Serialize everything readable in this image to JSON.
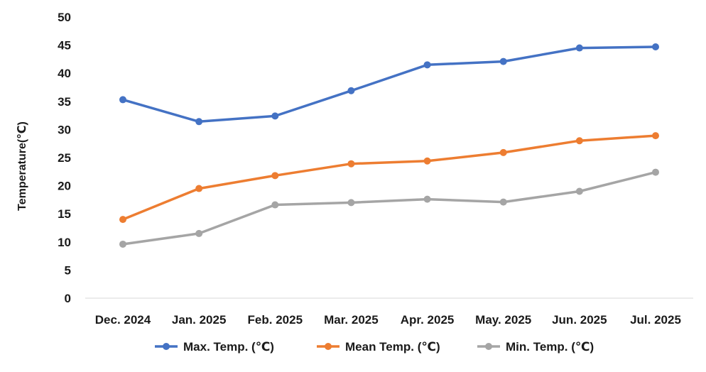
{
  "chart_data": {
    "type": "line",
    "title": "",
    "xlabel": "",
    "ylabel": "Temperature(℃)",
    "ylim": [
      0,
      50
    ],
    "yticks": [
      0,
      5,
      10,
      15,
      20,
      25,
      30,
      35,
      40,
      45,
      50
    ],
    "categories": [
      "Dec. 2024",
      "Jan. 2025",
      "Feb. 2025",
      "Mar. 2025",
      "Apr. 2025",
      "May. 2025",
      "Jun. 2025",
      "Jul. 2025"
    ],
    "grid": false,
    "legend_position": "bottom",
    "series": [
      {
        "name": "Max. Temp. (℃)",
        "color": "#4472C4",
        "values": [
          35.3,
          31.4,
          32.4,
          36.9,
          41.5,
          42.1,
          44.5,
          44.7
        ]
      },
      {
        "name": "Mean Temp. (℃)",
        "color": "#ED7D31",
        "values": [
          14.0,
          19.5,
          21.8,
          23.9,
          24.4,
          25.9,
          28.0,
          28.9
        ]
      },
      {
        "name": "Min. Temp. (℃)",
        "color": "#A5A5A5",
        "values": [
          9.6,
          11.5,
          16.6,
          17.0,
          17.6,
          17.1,
          19.0,
          22.4
        ]
      }
    ]
  }
}
